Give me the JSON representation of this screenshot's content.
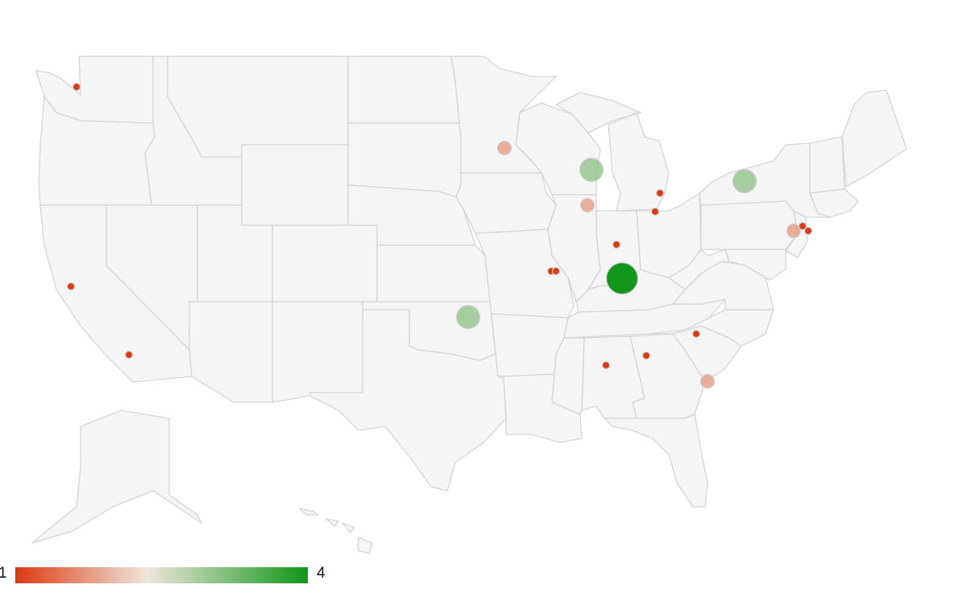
{
  "colors": {
    "low": "#dc3912",
    "mid": "#efe6dc",
    "high": "#109618",
    "land": "#f5f5f5",
    "border": "#d6d6d6"
  },
  "legend": {
    "min_label": "1",
    "max_label": "4",
    "min": 1,
    "max": 4
  },
  "markers": [
    {
      "name": "seattle",
      "value": 1
    },
    {
      "name": "minneapolis",
      "value": 1.8
    },
    {
      "name": "milwaukee",
      "value": 3
    },
    {
      "name": "chicago",
      "value": 1.8
    },
    {
      "name": "detroit",
      "value": 1
    },
    {
      "name": "toledo",
      "value": 1
    },
    {
      "name": "indianapolis",
      "value": 1
    },
    {
      "name": "louisville",
      "value": 4
    },
    {
      "name": "buffalo",
      "value": 3
    },
    {
      "name": "philadelphia",
      "value": 1.8
    },
    {
      "name": "new-york",
      "value": 1
    },
    {
      "name": "newark",
      "value": 1
    },
    {
      "name": "st-louis-west",
      "value": 1
    },
    {
      "name": "st-louis-east",
      "value": 1
    },
    {
      "name": "oklahoma-city",
      "value": 3
    },
    {
      "name": "san-francisco",
      "value": 1
    },
    {
      "name": "los-angeles",
      "value": 1
    },
    {
      "name": "charlotte",
      "value": 1
    },
    {
      "name": "atlanta",
      "value": 1
    },
    {
      "name": "birmingham",
      "value": 1
    },
    {
      "name": "charleston",
      "value": 1.8
    }
  ]
}
